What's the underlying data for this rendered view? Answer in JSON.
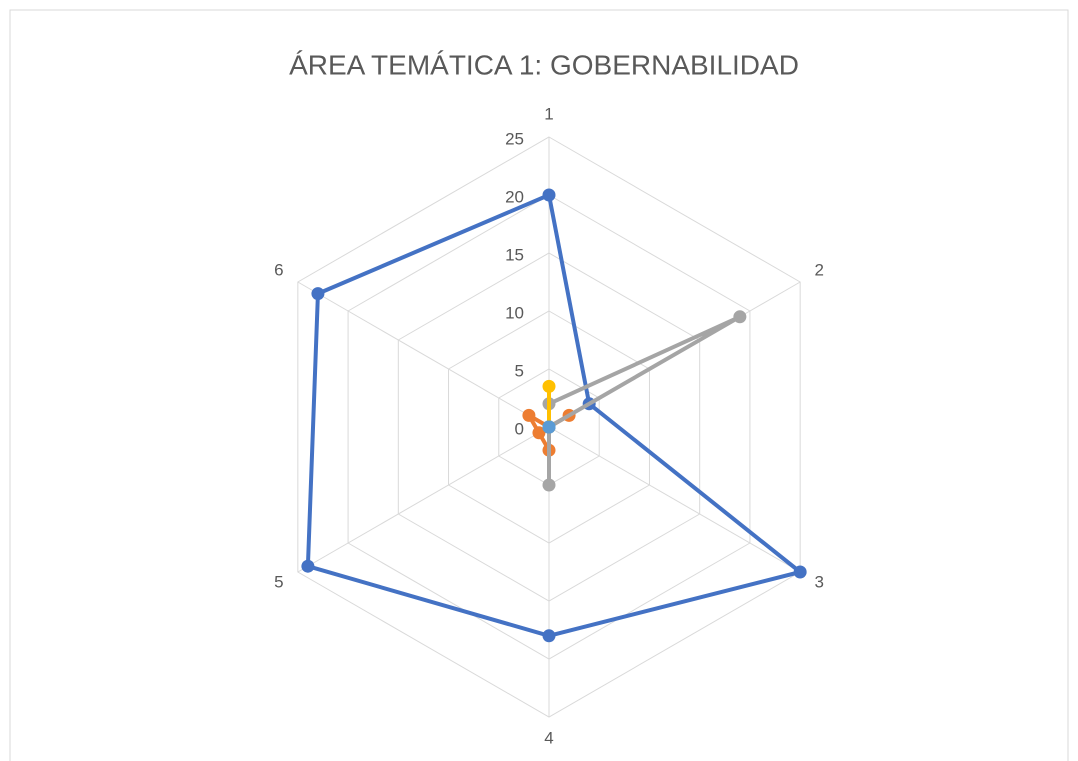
{
  "chart_data": {
    "type": "radar",
    "title": "ÁREA TEMÁTICA 1: GOBERNABILIDAD",
    "categories": [
      "1",
      "2",
      "3",
      "4",
      "5",
      "6"
    ],
    "series": [
      {
        "color": "#4472c4",
        "values": [
          20,
          4,
          25,
          18,
          24,
          23
        ]
      },
      {
        "color": "#ed7d31",
        "values": [
          0,
          2,
          0,
          2,
          1,
          2
        ]
      },
      {
        "color": "#a5a5a5",
        "values": [
          2,
          19,
          0,
          5,
          0,
          0
        ]
      },
      {
        "color": "#ffc000",
        "values": [
          3.5,
          0,
          0,
          0,
          0,
          0
        ]
      },
      {
        "color": "#5b9bd5",
        "values": [
          0,
          0,
          0,
          0,
          0,
          0
        ]
      }
    ],
    "ylim": [
      0,
      25
    ],
    "yticks": [
      0,
      5,
      10,
      15,
      20,
      25
    ],
    "grid": true
  }
}
